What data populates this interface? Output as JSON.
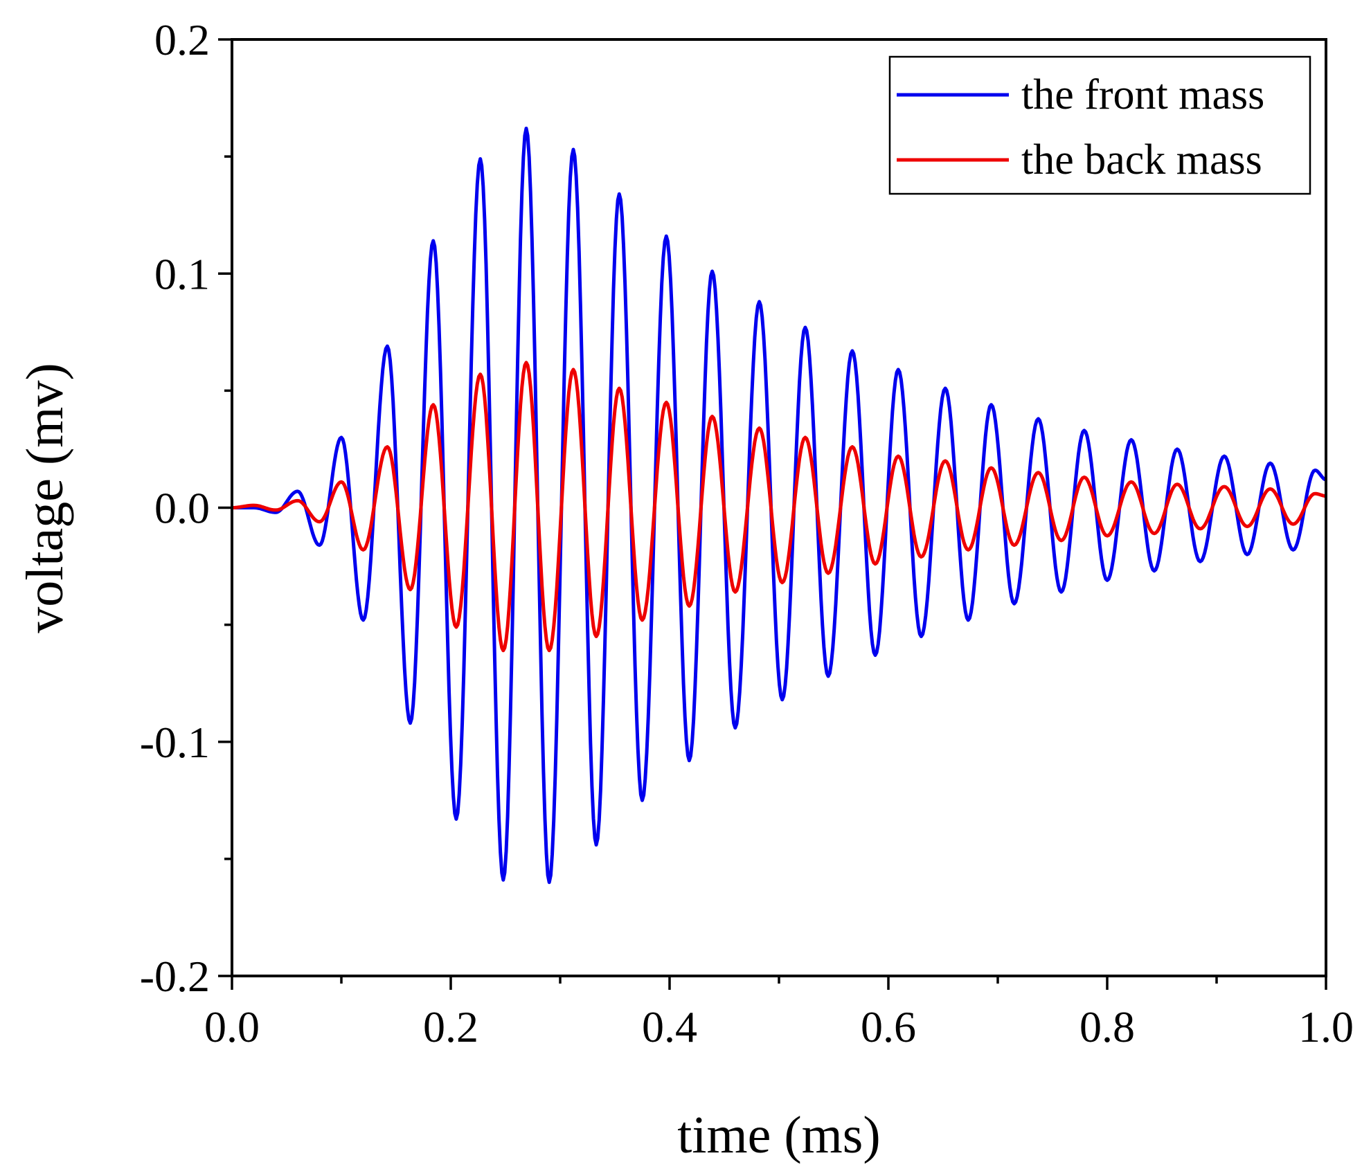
{
  "chart_data": {
    "type": "line",
    "title": "",
    "xlabel": "time (ms)",
    "ylabel": "voltage (mv)",
    "xlim": [
      0.0,
      1.0
    ],
    "ylim": [
      -0.2,
      0.2
    ],
    "xticks": [
      "0.0",
      "0.2",
      "0.4",
      "0.6",
      "0.8",
      "1.0"
    ],
    "xtick_values": [
      0.0,
      0.2,
      0.4,
      0.6,
      0.8,
      1.0
    ],
    "yticks": [
      "-0.2",
      "-0.1",
      "0.0",
      "0.1",
      "0.2"
    ],
    "ytick_values": [
      -0.2,
      -0.1,
      0.0,
      0.1,
      0.2
    ],
    "grid": false,
    "legend_position": "top-right",
    "series": [
      {
        "name": "the front mass",
        "color": "#0000ee",
        "extrema": [
          [
            0.0,
            0.0
          ],
          [
            0.02,
            0.0
          ],
          [
            0.04,
            -0.002
          ],
          [
            0.06,
            0.007
          ],
          [
            0.08,
            -0.016
          ],
          [
            0.1,
            0.03
          ],
          [
            0.12,
            -0.048
          ],
          [
            0.142,
            0.069
          ],
          [
            0.163,
            -0.092
          ],
          [
            0.184,
            0.114
          ],
          [
            0.205,
            -0.133
          ],
          [
            0.227,
            0.149
          ],
          [
            0.248,
            -0.159
          ],
          [
            0.269,
            0.162
          ],
          [
            0.29,
            -0.16
          ],
          [
            0.312,
            0.153
          ],
          [
            0.333,
            -0.144
          ],
          [
            0.354,
            0.134
          ],
          [
            0.375,
            -0.125
          ],
          [
            0.397,
            0.116
          ],
          [
            0.418,
            -0.108
          ],
          [
            0.439,
            0.101
          ],
          [
            0.46,
            -0.094
          ],
          [
            0.482,
            0.088
          ],
          [
            0.503,
            -0.082
          ],
          [
            0.524,
            0.077
          ],
          [
            0.545,
            -0.072
          ],
          [
            0.567,
            0.067
          ],
          [
            0.588,
            -0.063
          ],
          [
            0.609,
            0.059
          ],
          [
            0.63,
            -0.055
          ],
          [
            0.652,
            0.051
          ],
          [
            0.673,
            -0.048
          ],
          [
            0.694,
            0.044
          ],
          [
            0.715,
            -0.041
          ],
          [
            0.737,
            0.038
          ],
          [
            0.758,
            -0.036
          ],
          [
            0.779,
            0.033
          ],
          [
            0.8,
            -0.031
          ],
          [
            0.822,
            0.029
          ],
          [
            0.843,
            -0.027
          ],
          [
            0.864,
            0.025
          ],
          [
            0.885,
            -0.023
          ],
          [
            0.907,
            0.022
          ],
          [
            0.928,
            -0.02
          ],
          [
            0.949,
            0.019
          ],
          [
            0.97,
            -0.018
          ],
          [
            0.99,
            0.016
          ],
          [
            1.0,
            0.012
          ]
        ]
      },
      {
        "name": "the back mass",
        "color": "#ee0000",
        "extrema": [
          [
            0.0,
            0.0
          ],
          [
            0.02,
            0.001
          ],
          [
            0.04,
            -0.001
          ],
          [
            0.06,
            0.003
          ],
          [
            0.08,
            -0.006
          ],
          [
            0.1,
            0.011
          ],
          [
            0.12,
            -0.018
          ],
          [
            0.142,
            0.026
          ],
          [
            0.163,
            -0.035
          ],
          [
            0.184,
            0.044
          ],
          [
            0.205,
            -0.051
          ],
          [
            0.227,
            0.057
          ],
          [
            0.248,
            -0.061
          ],
          [
            0.269,
            0.062
          ],
          [
            0.29,
            -0.061
          ],
          [
            0.312,
            0.059
          ],
          [
            0.333,
            -0.055
          ],
          [
            0.354,
            0.051
          ],
          [
            0.375,
            -0.048
          ],
          [
            0.397,
            0.045
          ],
          [
            0.418,
            -0.042
          ],
          [
            0.439,
            0.039
          ],
          [
            0.46,
            -0.036
          ],
          [
            0.482,
            0.034
          ],
          [
            0.503,
            -0.032
          ],
          [
            0.524,
            0.03
          ],
          [
            0.545,
            -0.028
          ],
          [
            0.567,
            0.026
          ],
          [
            0.588,
            -0.024
          ],
          [
            0.609,
            0.022
          ],
          [
            0.63,
            -0.021
          ],
          [
            0.652,
            0.02
          ],
          [
            0.673,
            -0.018
          ],
          [
            0.694,
            0.017
          ],
          [
            0.715,
            -0.016
          ],
          [
            0.737,
            0.015
          ],
          [
            0.758,
            -0.014
          ],
          [
            0.779,
            0.013
          ],
          [
            0.8,
            -0.012
          ],
          [
            0.822,
            0.011
          ],
          [
            0.843,
            -0.011
          ],
          [
            0.864,
            0.01
          ],
          [
            0.885,
            -0.009
          ],
          [
            0.907,
            0.009
          ],
          [
            0.928,
            -0.008
          ],
          [
            0.949,
            0.008
          ],
          [
            0.97,
            -0.007
          ],
          [
            0.99,
            0.006
          ],
          [
            1.0,
            0.005
          ]
        ]
      }
    ]
  }
}
